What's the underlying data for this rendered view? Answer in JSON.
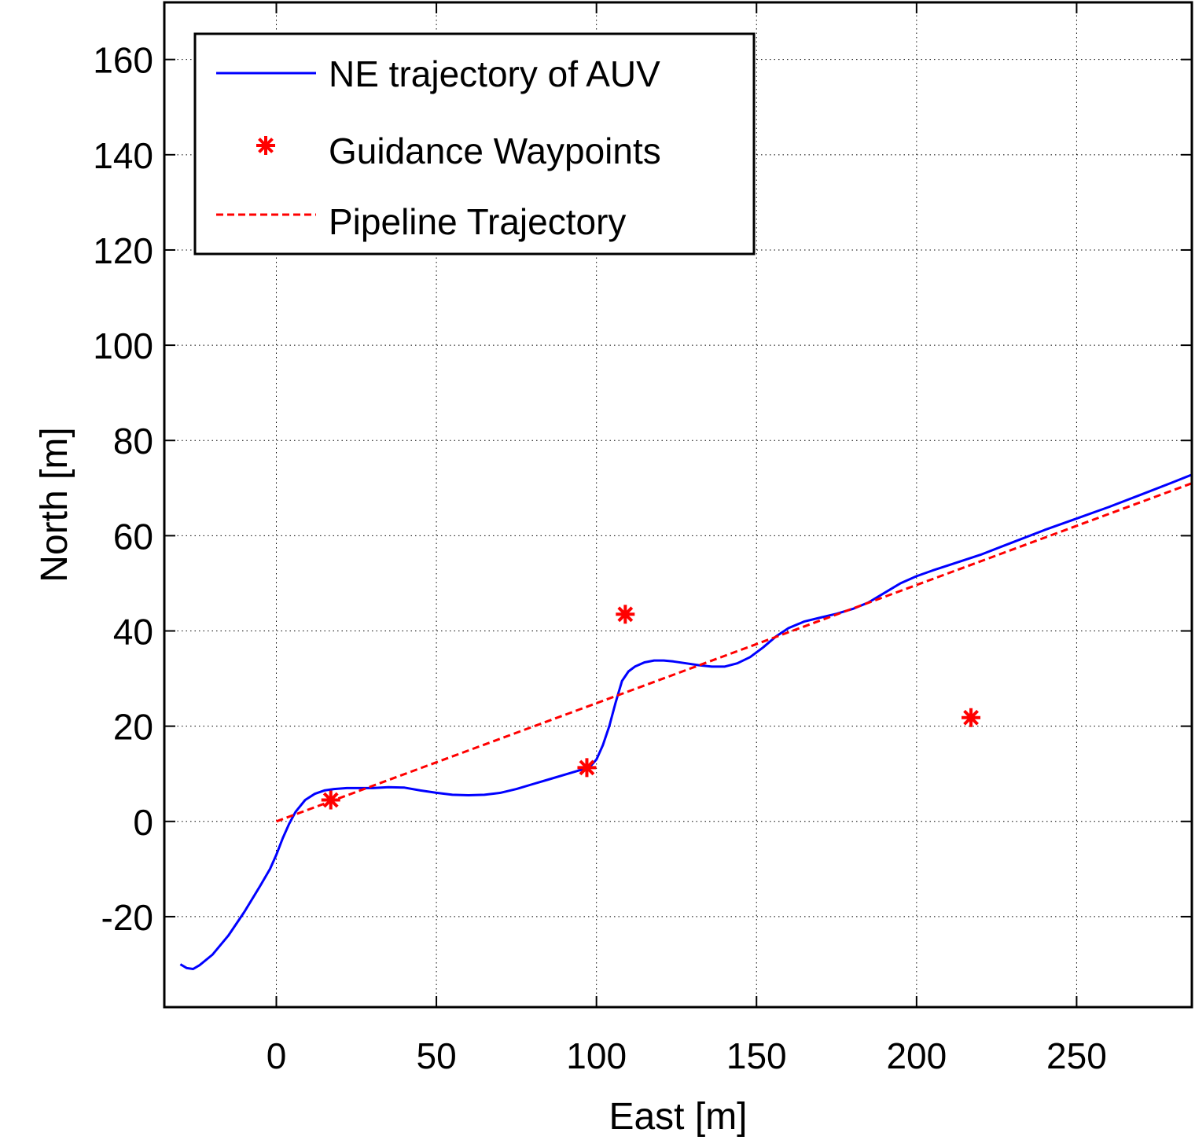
{
  "chart_data": {
    "type": "line",
    "xlabel": "East [m]",
    "ylabel": "North [m]",
    "xlim": [
      -35,
      286
    ],
    "ylim": [
      -39,
      172
    ],
    "x_ticks": [
      0,
      50,
      100,
      150,
      200,
      250
    ],
    "y_ticks": [
      -20,
      0,
      20,
      40,
      60,
      80,
      100,
      120,
      140,
      160
    ],
    "grid": true,
    "legend_position": "top-left",
    "series": [
      {
        "name": "NE trajectory of AUV",
        "style": "solid",
        "color": "#0000ff",
        "x": [
          -30,
          -28,
          -26,
          -24,
          -20,
          -15,
          -10,
          -5,
          -2,
          0,
          2,
          4,
          6,
          9,
          12,
          15,
          18,
          22,
          26,
          30,
          35,
          40,
          45,
          50,
          55,
          60,
          65,
          70,
          75,
          80,
          85,
          90,
          95,
          98,
          100,
          102,
          104,
          106,
          108,
          110,
          112,
          115,
          118,
          121,
          124,
          128,
          132,
          136,
          140,
          144,
          148,
          152,
          156,
          160,
          165,
          170,
          175,
          180,
          185,
          190,
          195,
          200,
          205,
          210,
          220,
          230,
          240,
          250,
          260,
          270,
          280,
          286
        ],
        "y": [
          -30,
          -30.8,
          -31,
          -30.2,
          -28,
          -24,
          -19,
          -13.5,
          -10,
          -7,
          -3.5,
          -0.5,
          2,
          4.5,
          5.8,
          6.5,
          6.8,
          7,
          7,
          7,
          7.2,
          7.1,
          6.5,
          6,
          5.6,
          5.5,
          5.6,
          6,
          6.8,
          7.8,
          8.8,
          9.8,
          10.8,
          11.5,
          13,
          16,
          20,
          25,
          29.5,
          31.5,
          32.5,
          33.4,
          33.8,
          33.8,
          33.6,
          33.2,
          32.8,
          32.5,
          32.5,
          33.2,
          34.5,
          36.5,
          38.8,
          40.6,
          42,
          42.8,
          43.6,
          44.6,
          46,
          48,
          50,
          51.5,
          52.7,
          53.8,
          56,
          58.6,
          61.2,
          63.6,
          66,
          68.6,
          71.2,
          72.8
        ]
      },
      {
        "name": "Guidance Waypoints",
        "style": "marker-asterisk",
        "color": "#ff0000",
        "x": [
          17,
          97,
          109,
          217
        ],
        "y": [
          4.5,
          11.3,
          43.5,
          21.8
        ]
      },
      {
        "name": "Pipeline Trajectory",
        "style": "dashed",
        "color": "#ff0000",
        "x": [
          0,
          286
        ],
        "y": [
          0,
          71
        ]
      }
    ]
  }
}
